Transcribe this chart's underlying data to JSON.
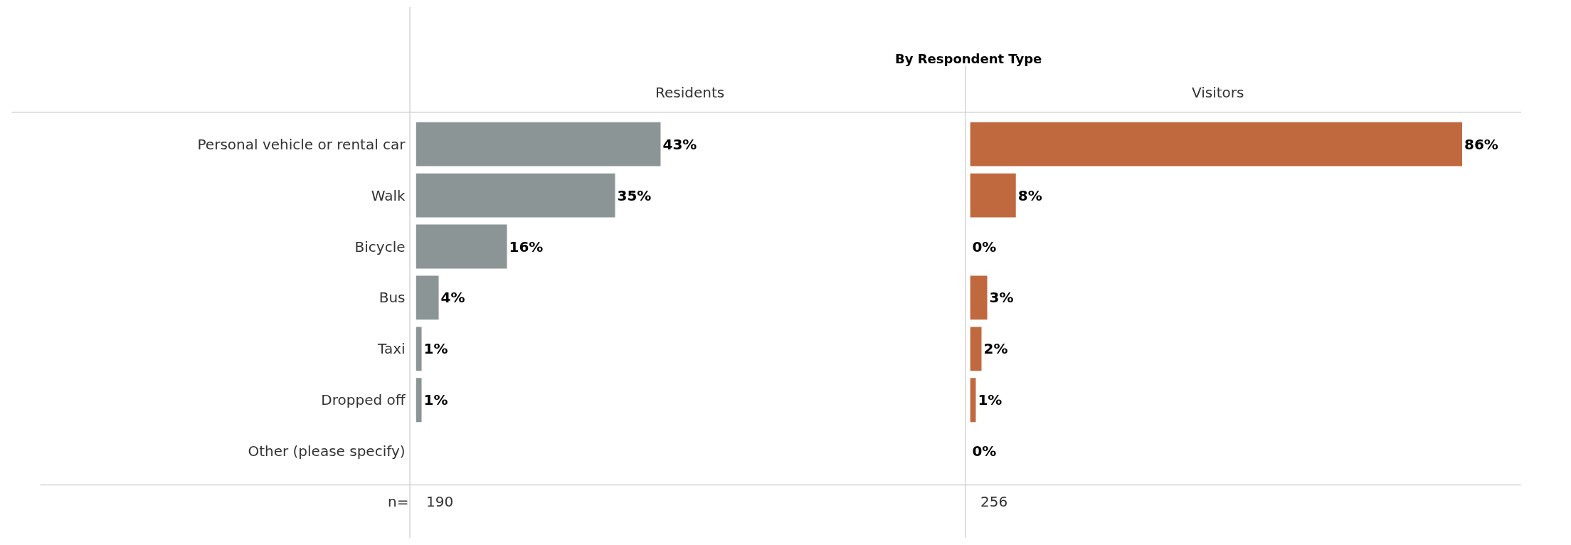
{
  "chart_data": [
    {
      "type": "bar",
      "orientation": "horizontal",
      "title": "Residents",
      "categories": [
        "Personal vehicle or rental car",
        "Walk",
        "Bicycle",
        "Bus",
        "Taxi",
        "Dropped off",
        "Other (please specify)"
      ],
      "values": [
        43,
        35,
        16,
        4,
        1,
        1,
        null
      ],
      "value_labels": [
        "43%",
        "35%",
        "16%",
        "4%",
        "1%",
        "1%",
        null
      ],
      "color": "#8c9596",
      "tick_labels": "y",
      "annotations": [
        "By Respondent Type",
        "n=",
        "190"
      ]
    },
    {
      "type": "bar",
      "orientation": "horizontal",
      "title": "Visitors",
      "categories": [
        "Personal vehicle or rental car",
        "Walk",
        "Bicycle",
        "Bus",
        "Taxi",
        "Dropped off",
        "Other (please specify)"
      ],
      "values": [
        86,
        8,
        0,
        3,
        2,
        1,
        0
      ],
      "value_labels": [
        "86%",
        "8%",
        "0%",
        "3%",
        "2%",
        "1%",
        "0%"
      ],
      "color": "#c0693f",
      "tick_labels": false,
      "annotations": [
        "256"
      ]
    }
  ]
}
